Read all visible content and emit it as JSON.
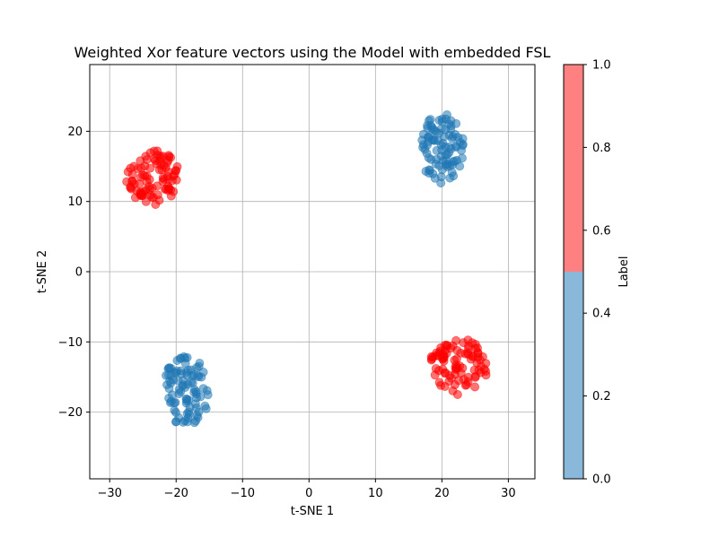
{
  "chart_data": {
    "type": "scatter",
    "title": "Weighted Xor feature vectors using the Model with embedded FSL",
    "xlabel": "t-SNE 1",
    "ylabel": "t-SNE 2",
    "xlim": [
      -33,
      34
    ],
    "ylim": [
      -29.5,
      29.5
    ],
    "xticks": [
      -30,
      -20,
      -10,
      0,
      10,
      20,
      30
    ],
    "yticks": [
      -20,
      -10,
      0,
      10,
      20
    ],
    "grid": true,
    "point_alpha": 0.55,
    "clusters": [
      {
        "label": 1,
        "center": [
          -23.5,
          13.5
        ],
        "spread": [
          4.0,
          4.0
        ],
        "count": 90
      },
      {
        "label": 0,
        "center": [
          20.0,
          17.5
        ],
        "spread": [
          3.3,
          5.0
        ],
        "count": 90
      },
      {
        "label": 0,
        "center": [
          -18.5,
          -17.0
        ],
        "spread": [
          3.5,
          5.0
        ],
        "count": 90
      },
      {
        "label": 1,
        "center": [
          22.5,
          -13.5
        ],
        "spread": [
          4.5,
          4.0
        ],
        "count": 90
      }
    ],
    "colorbar": {
      "label": "Label",
      "ticks": [
        "0.0",
        "0.2",
        "0.4",
        "0.6",
        "0.8",
        "1.0"
      ],
      "colors": {
        "0": "#1f77b4",
        "1": "#ff0000"
      },
      "band_colors": {
        "0": "#8ab8da",
        "1": "#ff8080"
      }
    }
  }
}
